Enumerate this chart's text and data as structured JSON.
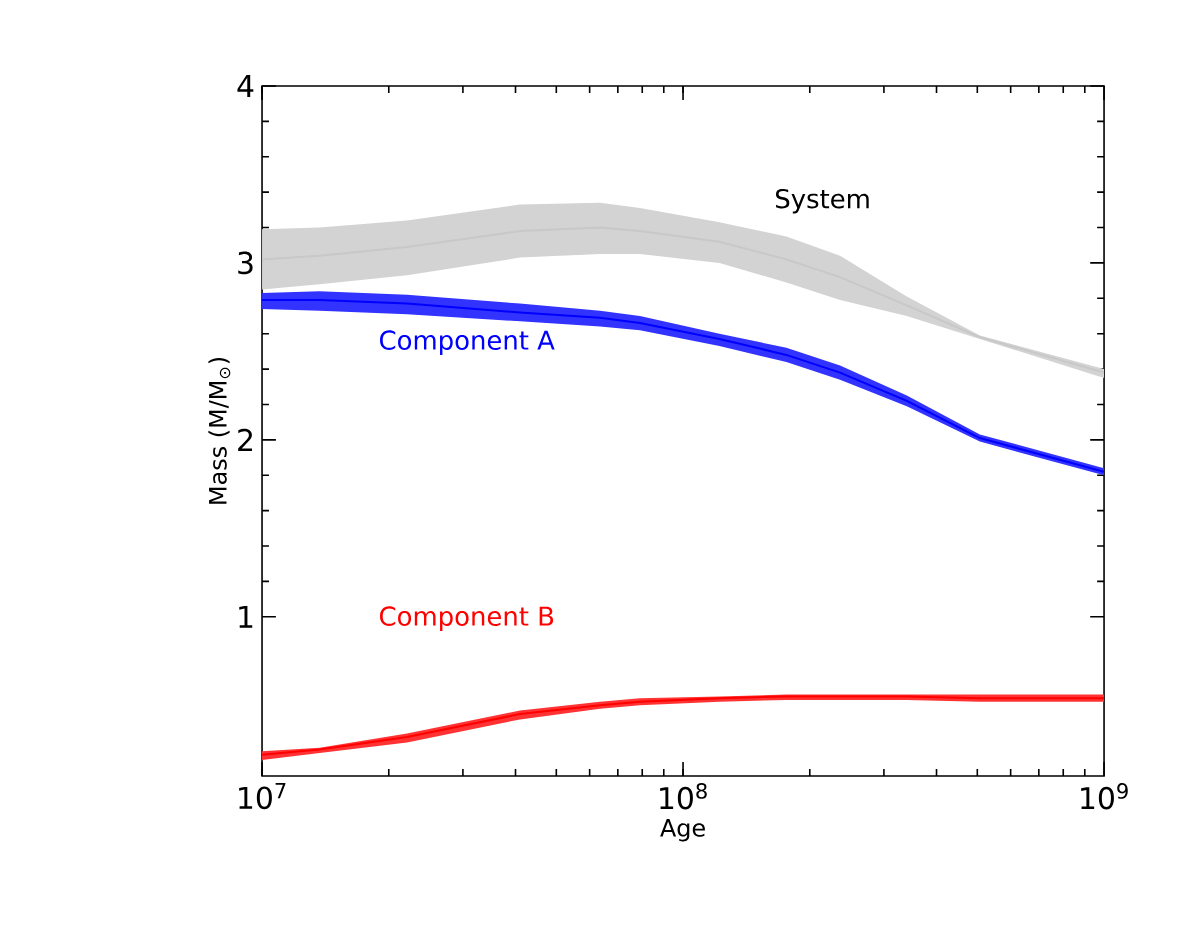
{
  "chart_data": {
    "type": "line",
    "xlabel": "Age",
    "ylabel": "Mass (M/M$_{⊙}$)",
    "log": "x",
    "marker": "none",
    "grid": false,
    "x": [
      10000000.0,
      13700000.0,
      22100000.0,
      41000000.0,
      63500000.0,
      79000000.0,
      122000000.0,
      176000000.0,
      236000000.0,
      340000000.0,
      507000000.0,
      1000000000.0
    ],
    "xlim": [
      10000000.0,
      1000000000.0
    ],
    "xticks": [
      {
        "value": 10000000.0,
        "label": "10$^{7}$"
      },
      {
        "value": 100000000.0,
        "label": "10$^{8}$"
      },
      {
        "value": 1000000000.0,
        "label": "10$^{9}$"
      }
    ],
    "ylim": [
      0.1,
      4
    ],
    "yticks": [
      1,
      2,
      3,
      4
    ],
    "series": [
      {
        "name": "System",
        "color": "#c8c8c8",
        "values": [
          3.02,
          3.04,
          3.09,
          3.18,
          3.2,
          3.18,
          3.12,
          3.02,
          2.92,
          2.76,
          2.58,
          2.38
        ],
        "lower": [
          2.85,
          2.88,
          2.93,
          3.03,
          3.05,
          3.05,
          3.0,
          2.89,
          2.79,
          2.7,
          2.57,
          2.35
        ],
        "upper": [
          3.19,
          3.2,
          3.24,
          3.33,
          3.34,
          3.31,
          3.23,
          3.15,
          3.04,
          2.81,
          2.59,
          2.4
        ]
      },
      {
        "name": "Component A",
        "color": "#0000ff",
        "values": [
          2.79,
          2.79,
          2.77,
          2.72,
          2.69,
          2.66,
          2.57,
          2.48,
          2.38,
          2.22,
          2.01,
          1.82
        ],
        "lower": [
          2.74,
          2.73,
          2.71,
          2.67,
          2.64,
          2.62,
          2.53,
          2.44,
          2.34,
          2.19,
          1.99,
          1.8
        ],
        "upper": [
          2.83,
          2.84,
          2.82,
          2.77,
          2.73,
          2.7,
          2.6,
          2.52,
          2.42,
          2.25,
          2.03,
          1.84
        ]
      },
      {
        "name": "Component B",
        "color": "#ff0000",
        "values": [
          0.22,
          0.25,
          0.32,
          0.45,
          0.5,
          0.52,
          0.54,
          0.55,
          0.55,
          0.55,
          0.54,
          0.54
        ],
        "lower": [
          0.19,
          0.23,
          0.29,
          0.42,
          0.48,
          0.5,
          0.52,
          0.53,
          0.53,
          0.53,
          0.52,
          0.52
        ],
        "upper": [
          0.24,
          0.26,
          0.34,
          0.47,
          0.52,
          0.54,
          0.55,
          0.56,
          0.56,
          0.56,
          0.56,
          0.56
        ]
      }
    ]
  }
}
